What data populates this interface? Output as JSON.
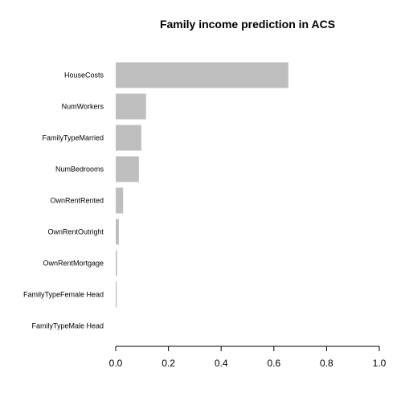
{
  "chart_data": {
    "type": "bar",
    "orientation": "horizontal",
    "title": "Family income prediction in ACS",
    "xlabel": "",
    "ylabel": "",
    "categories": [
      "HouseCosts",
      "NumWorkers",
      "FamilyTypeMarried",
      "NumBedrooms",
      "OwnRentRented",
      "OwnRentOutright",
      "OwnRentMortgage",
      "FamilyTypeFemale Head",
      "FamilyTypeMale Head"
    ],
    "values": [
      0.655,
      0.115,
      0.097,
      0.088,
      0.028,
      0.012,
      0.005,
      0.004,
      0.0
    ],
    "xlim": [
      0,
      1
    ],
    "xticks": [
      0,
      0.2,
      0.4,
      0.6,
      0.8,
      1
    ],
    "xtick_labels": [
      "0.0",
      "0.2",
      "0.4",
      "0.6",
      "0.8",
      "1.0"
    ],
    "bar_color": "#bebebe",
    "grid": false,
    "legend": "none"
  }
}
